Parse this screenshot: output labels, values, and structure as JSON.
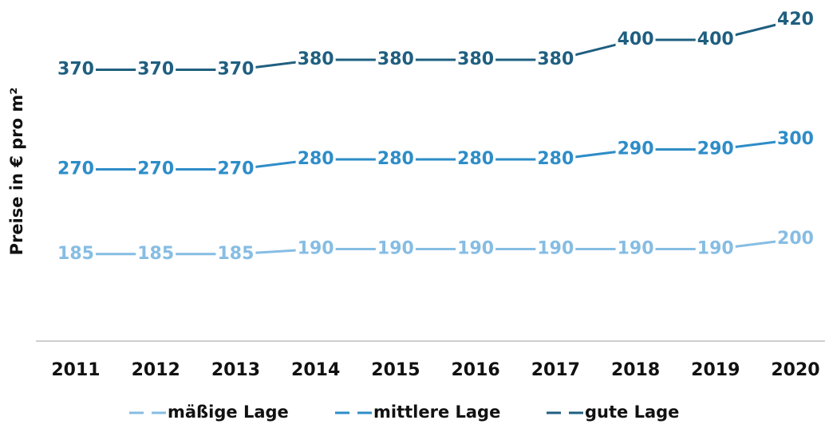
{
  "chart_data": {
    "type": "line",
    "y_label": "Preise in € pro m²",
    "x": [
      "2011",
      "2012",
      "2013",
      "2014",
      "2015",
      "2016",
      "2017",
      "2018",
      "2019",
      "2020"
    ],
    "series": [
      {
        "name": "mäßige Lage",
        "color": "#86bde3",
        "values": [
          185,
          185,
          185,
          190,
          190,
          190,
          190,
          190,
          190,
          200
        ]
      },
      {
        "name": "mittlere Lage",
        "color": "#2e8dc8",
        "values": [
          270,
          270,
          270,
          280,
          280,
          280,
          280,
          290,
          290,
          300
        ]
      },
      {
        "name": "gute Lage",
        "color": "#1f5f80",
        "values": [
          370,
          370,
          370,
          380,
          380,
          380,
          380,
          400,
          400,
          420
        ]
      }
    ],
    "ylim": [
      100,
      440
    ]
  }
}
